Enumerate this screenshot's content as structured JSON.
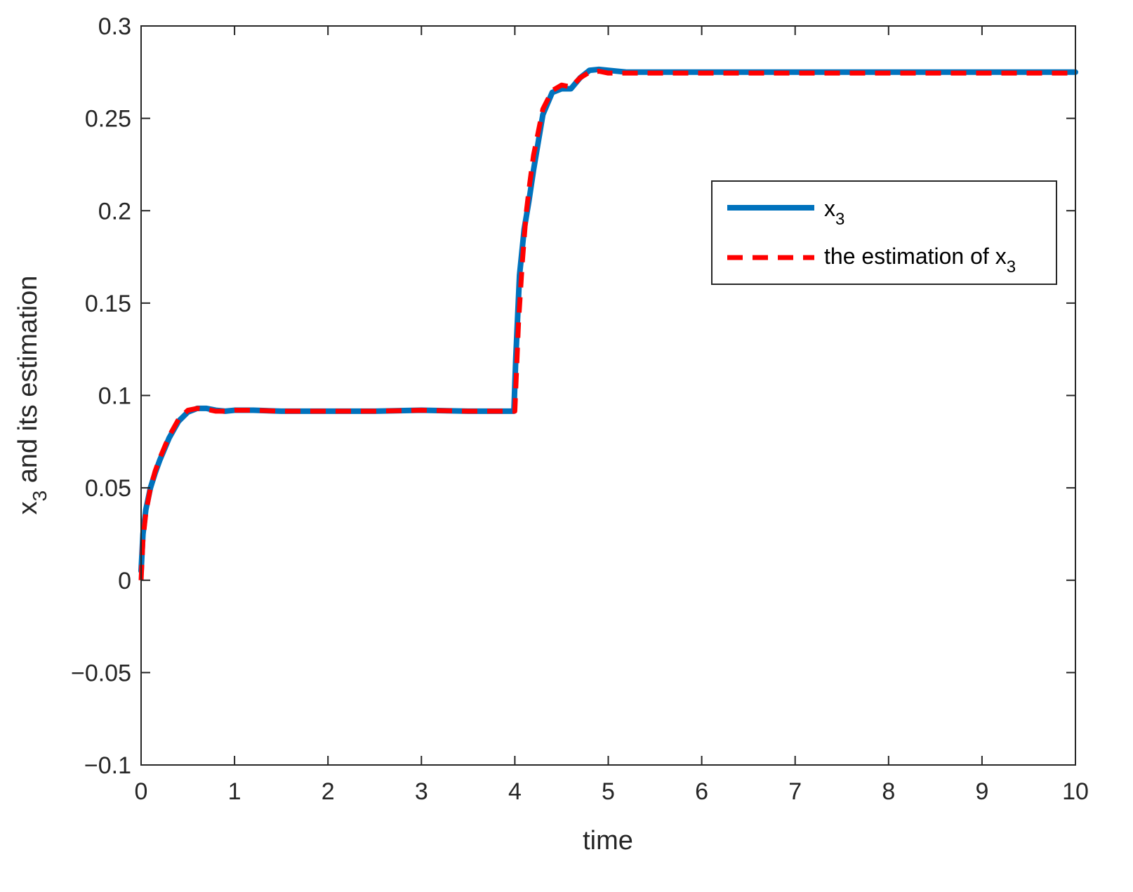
{
  "chart_data": {
    "type": "line",
    "xlabel": "time",
    "ylabel": {
      "base": "x",
      "sub": "3",
      "rest": " and its estimation"
    },
    "xlim": [
      0,
      10
    ],
    "ylim": [
      -0.1,
      0.3
    ],
    "xticks": [
      0,
      1,
      2,
      3,
      4,
      5,
      6,
      7,
      8,
      9,
      10
    ],
    "xtick_labels": [
      "0",
      "1",
      "2",
      "3",
      "4",
      "5",
      "6",
      "7",
      "8",
      "9",
      "10"
    ],
    "yticks": [
      -0.1,
      -0.05,
      0,
      0.05,
      0.1,
      0.15,
      0.2,
      0.25,
      0.3
    ],
    "ytick_labels": [
      "−0.1",
      "−0.05",
      "0",
      "0.05",
      "0.1",
      "0.15",
      "0.2",
      "0.25",
      "0.3"
    ],
    "grid": false,
    "legend_position": "top-right",
    "series": [
      {
        "name": "x",
        "name_sub": "3",
        "name_suffix": "",
        "color": "#0072BD",
        "style": "solid",
        "x": [
          0,
          0.02,
          0.05,
          0.1,
          0.15,
          0.2,
          0.3,
          0.4,
          0.5,
          0.6,
          0.7,
          0.8,
          0.9,
          1.0,
          1.2,
          1.5,
          2.0,
          2.5,
          3.0,
          3.5,
          3.9,
          3.99,
          4.01,
          4.05,
          4.1,
          4.15,
          4.2,
          4.3,
          4.4,
          4.5,
          4.6,
          4.7,
          4.8,
          4.9,
          5.0,
          5.2,
          5.5,
          6.0,
          6.5,
          7.0,
          7.5,
          8.0,
          8.5,
          9.0,
          9.5,
          10.0
        ],
        "y": [
          0.005,
          0.025,
          0.038,
          0.05,
          0.058,
          0.065,
          0.077,
          0.086,
          0.091,
          0.093,
          0.093,
          0.092,
          0.0915,
          0.092,
          0.092,
          0.0915,
          0.0915,
          0.0915,
          0.092,
          0.0915,
          0.0915,
          0.0915,
          0.12,
          0.165,
          0.19,
          0.205,
          0.222,
          0.252,
          0.264,
          0.266,
          0.266,
          0.272,
          0.276,
          0.2765,
          0.276,
          0.275,
          0.275,
          0.275,
          0.275,
          0.275,
          0.275,
          0.275,
          0.275,
          0.275,
          0.275,
          0.275
        ]
      },
      {
        "name": "the estimation of x",
        "name_sub": "3",
        "name_suffix": "",
        "color": "#FF0000",
        "style": "dashed",
        "x": [
          0,
          0.02,
          0.05,
          0.1,
          0.15,
          0.2,
          0.3,
          0.4,
          0.5,
          0.6,
          0.7,
          0.8,
          0.9,
          1.0,
          1.2,
          1.5,
          2.0,
          2.5,
          3.0,
          3.5,
          3.9,
          4.0,
          4.04,
          4.08,
          4.12,
          4.16,
          4.2,
          4.3,
          4.4,
          4.5,
          4.6,
          4.7,
          4.8,
          4.9,
          5.0,
          5.2,
          5.5,
          6.0,
          6.5,
          7.0,
          7.5,
          8.0,
          8.5,
          9.0,
          9.5,
          10.0
        ],
        "y": [
          0.0,
          0.022,
          0.036,
          0.05,
          0.059,
          0.066,
          0.078,
          0.087,
          0.092,
          0.093,
          0.0925,
          0.0915,
          0.0915,
          0.092,
          0.092,
          0.0915,
          0.0915,
          0.0915,
          0.092,
          0.0915,
          0.0915,
          0.0915,
          0.14,
          0.172,
          0.198,
          0.215,
          0.23,
          0.255,
          0.265,
          0.268,
          0.267,
          0.272,
          0.275,
          0.2755,
          0.2745,
          0.2745,
          0.2745,
          0.2745,
          0.2745,
          0.2745,
          0.2745,
          0.2745,
          0.2745,
          0.2745,
          0.2745,
          0.2745
        ]
      }
    ]
  }
}
